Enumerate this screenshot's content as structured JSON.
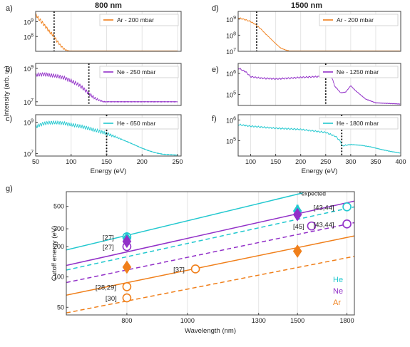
{
  "colors": {
    "ar": "#F07F1A",
    "ne": "#9230C8",
    "he": "#22C8CF",
    "grid": "#E4E4E4",
    "frame": "#444444"
  },
  "top": {
    "title_800": "800 nm",
    "title_1500": "1500 nm",
    "ylabel": "Intensity (arb. u.)",
    "xlabel": "Energy (eV)"
  },
  "chart_data": [
    {
      "type": "line",
      "panel": "a)",
      "wavelength": "800 nm",
      "series": [
        {
          "name": "Ar - 200 mbar",
          "color": "#F07F1A",
          "x": [
            50,
            55,
            60,
            65,
            70,
            75,
            80,
            85,
            90,
            95,
            100,
            110,
            250
          ],
          "y": [
            3000000000.0,
            1500000000.0,
            800000000.0,
            400000000.0,
            200000000.0,
            120000000.0,
            50000000.0,
            25000000.0,
            14000000.0,
            11000000.0,
            10000000.0,
            10000000.0,
            10000000.0
          ]
        }
      ],
      "xlim": [
        50,
        255
      ],
      "ylim": [
        10000000.0,
        5000000000.0
      ],
      "log_y": true,
      "yticks": [
        "10^8",
        "10^9"
      ],
      "cutoff": 76
    },
    {
      "type": "line",
      "panel": "b)",
      "wavelength": "800 nm",
      "series": [
        {
          "name": "Ne - 250 mbar",
          "color": "#9230C8",
          "x": [
            50,
            60,
            70,
            80,
            90,
            100,
            110,
            120,
            125,
            135,
            145,
            250
          ],
          "y": [
            400000000.0,
            450000000.0,
            400000000.0,
            350000000.0,
            270000000.0,
            180000000.0,
            110000000.0,
            50000000.0,
            30000000.0,
            15000000.0,
            10000000.0,
            10000000.0
          ]
        }
      ],
      "xlim": [
        50,
        255
      ],
      "ylim": [
        6000000.0,
        2000000000.0
      ],
      "log_y": true,
      "yticks": [
        "10^7",
        "10^9"
      ],
      "cutoff": 125
    },
    {
      "type": "line",
      "panel": "c)",
      "wavelength": "800 nm",
      "series": [
        {
          "name": "He - 650 mbar",
          "color": "#22C8CF",
          "x": [
            50,
            60,
            70,
            80,
            90,
            100,
            110,
            120,
            130,
            140,
            150,
            160,
            170,
            180,
            190,
            200,
            210,
            220,
            230,
            240,
            250
          ],
          "y": [
            500000000.0,
            800000000.0,
            950000000.0,
            950000000.0,
            850000000.0,
            700000000.0,
            580000000.0,
            460000000.0,
            350000000.0,
            260000000.0,
            190000000.0,
            130000000.0,
            85000000.0,
            55000000.0,
            35000000.0,
            22000000.0,
            15000000.0,
            11000000.0,
            9000000.0,
            8500000.0,
            8000000.0
          ]
        }
      ],
      "xlim": [
        50,
        255
      ],
      "ylim": [
        7000000.0,
        3000000000.0
      ],
      "log_y": true,
      "yticks": [
        "10^7",
        "10^9"
      ],
      "cutoff": 150,
      "xticks": [
        50,
        100,
        150,
        200,
        250
      ],
      "xlabel": "Energy (eV)"
    },
    {
      "type": "line",
      "panel": "d)",
      "wavelength": "1500 nm",
      "series": [
        {
          "name": "Ar - 200 mbar",
          "color": "#F07F1A",
          "x": [
            75,
            90,
            100,
            110,
            120,
            130,
            140,
            150,
            160,
            170,
            180,
            190,
            400
          ],
          "y": [
            1200000000.0,
            900000000.0,
            700000000.0,
            450000000.0,
            250000000.0,
            120000000.0,
            60000000.0,
            30000000.0,
            16000000.0,
            12000000.0,
            10000000.0,
            10000000.0,
            10000000.0
          ]
        }
      ],
      "xlim": [
        75,
        400
      ],
      "ylim": [
        10000000.0,
        3000000000.0
      ],
      "log_y": true,
      "yticks": [
        "10^7",
        "10^8",
        "10^9"
      ],
      "cutoff": 112
    },
    {
      "type": "line",
      "panel": "e)",
      "wavelength": "1500 nm",
      "series": [
        {
          "name": "Ne - 1250 mbar",
          "color": "#9230C8",
          "x": [
            75,
            90,
            100,
            120,
            150,
            180,
            200,
            230,
            250,
            262,
            268,
            280,
            290,
            300,
            310,
            330,
            350,
            400
          ],
          "y": [
            1800000.0,
            1200000.0,
            700000.0,
            600000.0,
            550000.0,
            600000.0,
            650000.0,
            700000.0,
            720000.0,
            700000.0,
            250000.0,
            120000.0,
            130000.0,
            260000.0,
            150000.0,
            60000.0,
            40000.0,
            35000.0
          ]
        }
      ],
      "xlim": [
        75,
        400
      ],
      "ylim": [
        30000.0,
        3000000.0
      ],
      "log_y": true,
      "yticks": [
        "10^5",
        "10^6"
      ],
      "cutoff": 250
    },
    {
      "type": "line",
      "panel": "f)",
      "wavelength": "1500 nm",
      "series": [
        {
          "name": "He - 1800 mbar",
          "color": "#22C8CF",
          "x": [
            75,
            100,
            150,
            200,
            250,
            270,
            280,
            282,
            290,
            300,
            320,
            340,
            360,
            380,
            400
          ],
          "y": [
            600000.0,
            500000.0,
            400000.0,
            350000.0,
            250000.0,
            160000.0,
            90000.0,
            55000.0,
            60000.0,
            65000.0,
            60000.0,
            50000.0,
            38000.0,
            30000.0,
            25000.0
          ]
        }
      ],
      "xlim": [
        75,
        400
      ],
      "ylim": [
        18000.0,
        1800000.0
      ],
      "log_y": true,
      "yticks": [
        "10^5",
        "10^6"
      ],
      "cutoff": 282,
      "xticks": [
        100,
        150,
        200,
        250,
        300,
        350,
        400
      ],
      "xlabel": "Energy (eV)"
    },
    {
      "type": "scatter",
      "panel": "g)",
      "xlabel": "Wavelength (nm)",
      "ylabel": "Cutoff energy (eV)",
      "xlim": [
        640,
        1850
      ],
      "ylim": [
        42,
        700
      ],
      "log_x": true,
      "log_y": true,
      "xticks": [
        800,
        1000,
        1300,
        1500,
        1800
      ],
      "yticks": [
        50,
        100,
        200,
        300,
        500
      ],
      "legend": [
        "He",
        "Ne",
        "Ar"
      ],
      "curves": [
        {
          "gas": "He",
          "style": "solid",
          "color": "#22C8CF",
          "x": [
            640,
            1530
          ],
          "y": [
            185,
            680
          ]
        },
        {
          "gas": "He",
          "style": "dashed",
          "color": "#22C8CF",
          "x": [
            640,
            1850
          ],
          "y": [
            117,
            495
          ]
        },
        {
          "gas": "Ne",
          "style": "solid",
          "color": "#9230C8",
          "x": [
            640,
            1850
          ],
          "y": [
            130,
            565
          ]
        },
        {
          "gas": "Ne",
          "style": "dashed",
          "color": "#9230C8",
          "x": [
            640,
            1850
          ],
          "y": [
            88,
            345
          ]
        },
        {
          "gas": "Ar",
          "style": "solid",
          "color": "#F07F1A",
          "x": [
            640,
            1850
          ],
          "y": [
            66,
            255
          ]
        },
        {
          "gas": "Ar",
          "style": "dashed",
          "color": "#F07F1A",
          "x": [
            640,
            1850
          ],
          "y": [
            44,
            160
          ]
        }
      ],
      "measured": [
        {
          "gas": "He",
          "x": 800,
          "y": 240,
          "color": "#22C8CF"
        },
        {
          "gas": "Ne",
          "x": 800,
          "y": 225,
          "color": "#9230C8"
        },
        {
          "gas": "Ar",
          "x": 800,
          "y": 125,
          "color": "#F07F1A"
        },
        {
          "gas": "He",
          "x": 1500,
          "y": 450,
          "color": "#22C8CF"
        },
        {
          "gas": "Ne",
          "x": 1500,
          "y": 415,
          "color": "#9230C8"
        },
        {
          "gas": "Ar",
          "x": 1500,
          "y": 180,
          "color": "#F07F1A"
        }
      ],
      "literature": [
        {
          "gas": "He",
          "x": 800,
          "y": 250,
          "label": "[27]",
          "color": "#22C8CF"
        },
        {
          "gas": "Ne",
          "x": 800,
          "y": 200,
          "label": "[27]",
          "color": "#9230C8"
        },
        {
          "gas": "Ar",
          "x": 800,
          "y": 80,
          "label": "[28,29]",
          "color": "#F07F1A"
        },
        {
          "gas": "Ar",
          "x": 800,
          "y": 62,
          "label": "[30]",
          "color": "#F07F1A"
        },
        {
          "gas": "Ar",
          "x": 1030,
          "y": 120,
          "label": "[37]",
          "color": "#F07F1A"
        },
        {
          "gas": "Ne",
          "x": 1580,
          "y": 320,
          "label": "[45]",
          "color": "#9230C8"
        },
        {
          "gas": "He",
          "x": 1800,
          "y": 495,
          "label": "[43,44]",
          "color": "#22C8CF"
        },
        {
          "gas": "Ne",
          "x": 1800,
          "y": 335,
          "label": "[43,44]",
          "color": "#9230C8"
        }
      ],
      "expected_note": "*expected"
    }
  ]
}
